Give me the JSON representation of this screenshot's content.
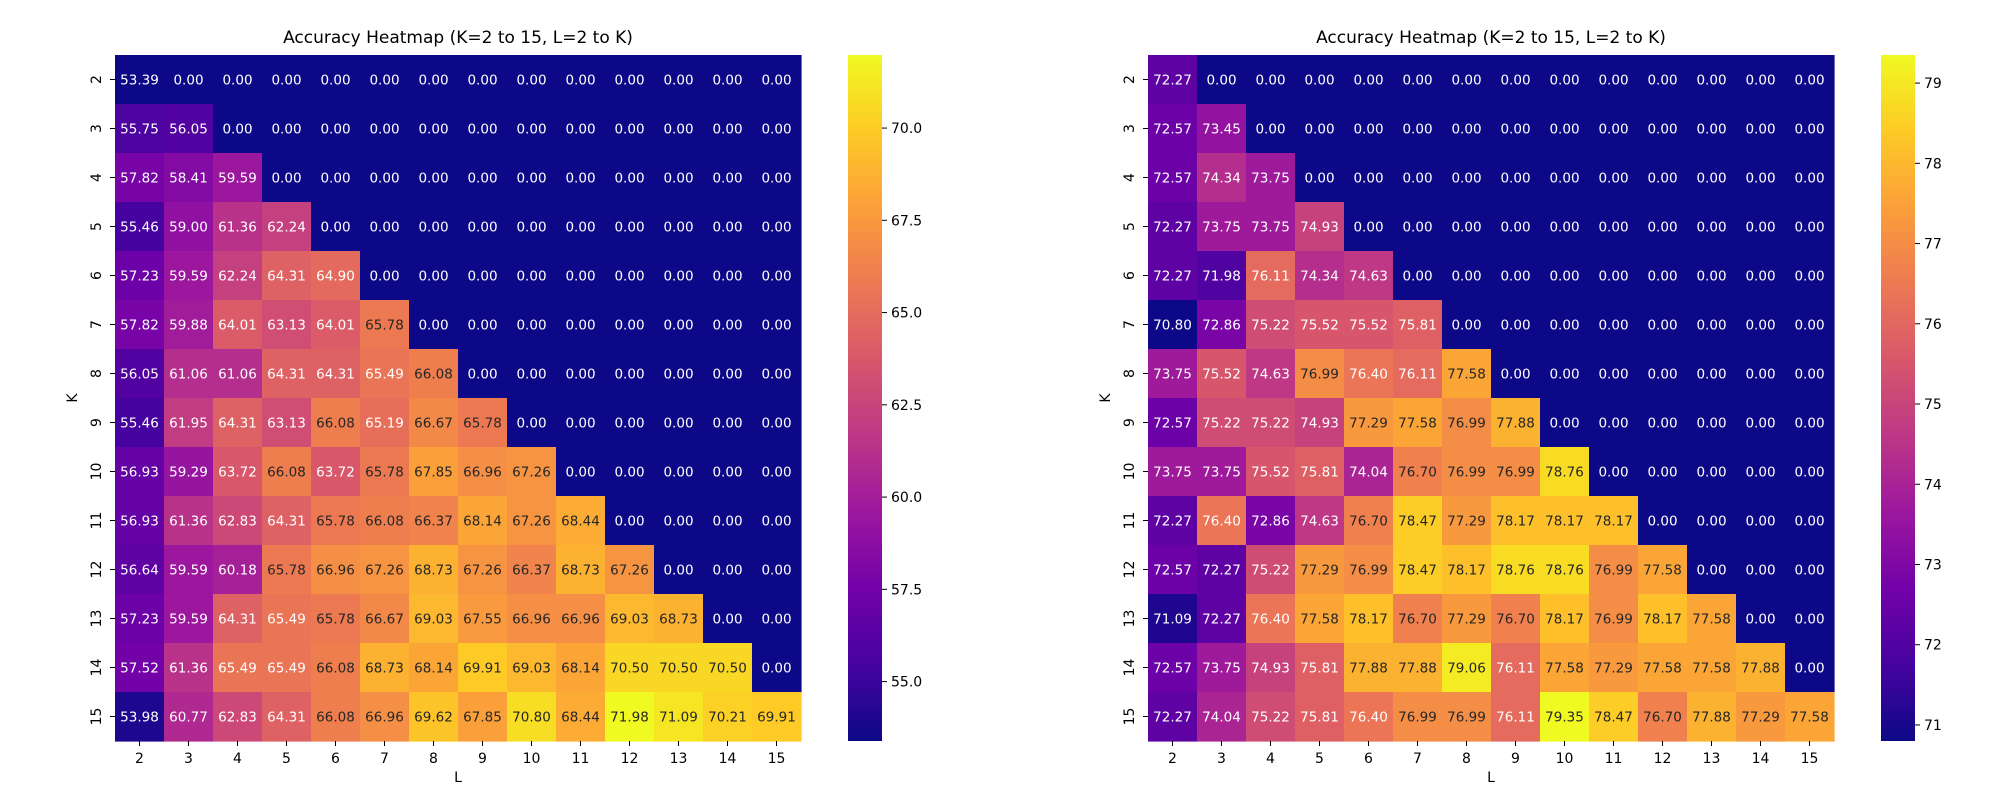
{
  "chart_data": [
    {
      "type": "heatmap",
      "title": "Accuracy Heatmap (K=2 to 15, L=2 to K)",
      "xlabel": "L",
      "ylabel": "K",
      "x_categories": [
        "2",
        "3",
        "4",
        "5",
        "6",
        "7",
        "8",
        "9",
        "10",
        "11",
        "12",
        "13",
        "14",
        "15"
      ],
      "y_categories": [
        "2",
        "3",
        "4",
        "5",
        "6",
        "7",
        "8",
        "9",
        "10",
        "11",
        "12",
        "13",
        "14",
        "15"
      ],
      "colormap": "plasma",
      "color_range": [
        53.39,
        71.98
      ],
      "colorbar_ticks": [
        "55.0",
        "57.5",
        "60.0",
        "62.5",
        "65.0",
        "67.5",
        "70.0"
      ],
      "values": [
        [
          "53.39",
          "0.00",
          "0.00",
          "0.00",
          "0.00",
          "0.00",
          "0.00",
          "0.00",
          "0.00",
          "0.00",
          "0.00",
          "0.00",
          "0.00",
          "0.00"
        ],
        [
          "55.75",
          "56.05",
          "0.00",
          "0.00",
          "0.00",
          "0.00",
          "0.00",
          "0.00",
          "0.00",
          "0.00",
          "0.00",
          "0.00",
          "0.00",
          "0.00"
        ],
        [
          "57.82",
          "58.41",
          "59.59",
          "0.00",
          "0.00",
          "0.00",
          "0.00",
          "0.00",
          "0.00",
          "0.00",
          "0.00",
          "0.00",
          "0.00",
          "0.00"
        ],
        [
          "55.46",
          "59.00",
          "61.36",
          "62.24",
          "0.00",
          "0.00",
          "0.00",
          "0.00",
          "0.00",
          "0.00",
          "0.00",
          "0.00",
          "0.00",
          "0.00"
        ],
        [
          "57.23",
          "59.59",
          "62.24",
          "64.31",
          "64.90",
          "0.00",
          "0.00",
          "0.00",
          "0.00",
          "0.00",
          "0.00",
          "0.00",
          "0.00",
          "0.00"
        ],
        [
          "57.82",
          "59.88",
          "64.01",
          "63.13",
          "64.01",
          "65.78",
          "0.00",
          "0.00",
          "0.00",
          "0.00",
          "0.00",
          "0.00",
          "0.00",
          "0.00"
        ],
        [
          "56.05",
          "61.06",
          "61.06",
          "64.31",
          "64.31",
          "65.49",
          "66.08",
          "0.00",
          "0.00",
          "0.00",
          "0.00",
          "0.00",
          "0.00",
          "0.00"
        ],
        [
          "55.46",
          "61.95",
          "64.31",
          "63.13",
          "66.08",
          "65.19",
          "66.67",
          "65.78",
          "0.00",
          "0.00",
          "0.00",
          "0.00",
          "0.00",
          "0.00"
        ],
        [
          "56.93",
          "59.29",
          "63.72",
          "66.08",
          "63.72",
          "65.78",
          "67.85",
          "66.96",
          "67.26",
          "0.00",
          "0.00",
          "0.00",
          "0.00",
          "0.00"
        ],
        [
          "56.93",
          "61.36",
          "62.83",
          "64.31",
          "65.78",
          "66.08",
          "66.37",
          "68.14",
          "67.26",
          "68.44",
          "0.00",
          "0.00",
          "0.00",
          "0.00"
        ],
        [
          "56.64",
          "59.59",
          "60.18",
          "65.78",
          "66.96",
          "67.26",
          "68.73",
          "67.26",
          "66.37",
          "68.73",
          "67.26",
          "0.00",
          "0.00",
          "0.00"
        ],
        [
          "57.23",
          "59.59",
          "64.31",
          "65.49",
          "65.78",
          "66.67",
          "69.03",
          "67.55",
          "66.96",
          "66.96",
          "69.03",
          "68.73",
          "0.00",
          "0.00"
        ],
        [
          "57.52",
          "61.36",
          "65.49",
          "65.49",
          "66.08",
          "68.73",
          "68.14",
          "69.91",
          "69.03",
          "68.14",
          "70.50",
          "70.50",
          "70.50",
          "0.00"
        ],
        [
          "53.98",
          "60.77",
          "62.83",
          "64.31",
          "66.08",
          "66.96",
          "69.62",
          "67.85",
          "70.80",
          "68.44",
          "71.98",
          "71.09",
          "70.21",
          "69.91"
        ]
      ]
    },
    {
      "type": "heatmap",
      "title": "Accuracy Heatmap (K=2 to 15, L=2 to K)",
      "xlabel": "L",
      "ylabel": "K",
      "x_categories": [
        "2",
        "3",
        "4",
        "5",
        "6",
        "7",
        "8",
        "9",
        "10",
        "11",
        "12",
        "13",
        "14",
        "15"
      ],
      "y_categories": [
        "2",
        "3",
        "4",
        "5",
        "6",
        "7",
        "8",
        "9",
        "10",
        "11",
        "12",
        "13",
        "14",
        "15"
      ],
      "colormap": "plasma",
      "color_range": [
        70.8,
        79.35
      ],
      "colorbar_ticks": [
        "71",
        "72",
        "73",
        "74",
        "75",
        "76",
        "77",
        "78",
        "79"
      ],
      "values": [
        [
          "72.27",
          "0.00",
          "0.00",
          "0.00",
          "0.00",
          "0.00",
          "0.00",
          "0.00",
          "0.00",
          "0.00",
          "0.00",
          "0.00",
          "0.00",
          "0.00"
        ],
        [
          "72.57",
          "73.45",
          "0.00",
          "0.00",
          "0.00",
          "0.00",
          "0.00",
          "0.00",
          "0.00",
          "0.00",
          "0.00",
          "0.00",
          "0.00",
          "0.00"
        ],
        [
          "72.57",
          "74.34",
          "73.75",
          "0.00",
          "0.00",
          "0.00",
          "0.00",
          "0.00",
          "0.00",
          "0.00",
          "0.00",
          "0.00",
          "0.00",
          "0.00"
        ],
        [
          "72.27",
          "73.75",
          "73.75",
          "74.93",
          "0.00",
          "0.00",
          "0.00",
          "0.00",
          "0.00",
          "0.00",
          "0.00",
          "0.00",
          "0.00",
          "0.00"
        ],
        [
          "72.27",
          "71.98",
          "76.11",
          "74.34",
          "74.63",
          "0.00",
          "0.00",
          "0.00",
          "0.00",
          "0.00",
          "0.00",
          "0.00",
          "0.00",
          "0.00"
        ],
        [
          "70.80",
          "72.86",
          "75.22",
          "75.52",
          "75.52",
          "75.81",
          "0.00",
          "0.00",
          "0.00",
          "0.00",
          "0.00",
          "0.00",
          "0.00",
          "0.00"
        ],
        [
          "73.75",
          "75.52",
          "74.63",
          "76.99",
          "76.40",
          "76.11",
          "77.58",
          "0.00",
          "0.00",
          "0.00",
          "0.00",
          "0.00",
          "0.00",
          "0.00"
        ],
        [
          "72.57",
          "75.22",
          "75.22",
          "74.93",
          "77.29",
          "77.58",
          "76.99",
          "77.88",
          "0.00",
          "0.00",
          "0.00",
          "0.00",
          "0.00",
          "0.00"
        ],
        [
          "73.75",
          "73.75",
          "75.52",
          "75.81",
          "74.04",
          "76.70",
          "76.99",
          "76.99",
          "78.76",
          "0.00",
          "0.00",
          "0.00",
          "0.00",
          "0.00"
        ],
        [
          "72.27",
          "76.40",
          "72.86",
          "74.63",
          "76.70",
          "78.47",
          "77.29",
          "78.17",
          "78.17",
          "78.17",
          "0.00",
          "0.00",
          "0.00",
          "0.00"
        ],
        [
          "72.57",
          "72.27",
          "75.22",
          "77.29",
          "76.99",
          "78.47",
          "78.17",
          "78.76",
          "78.76",
          "76.99",
          "77.58",
          "0.00",
          "0.00",
          "0.00"
        ],
        [
          "71.09",
          "72.27",
          "76.40",
          "77.58",
          "78.17",
          "76.70",
          "77.29",
          "76.70",
          "78.17",
          "76.99",
          "78.17",
          "77.58",
          "0.00",
          "0.00"
        ],
        [
          "72.57",
          "73.75",
          "74.93",
          "75.81",
          "77.88",
          "77.88",
          "79.06",
          "76.11",
          "77.58",
          "77.29",
          "77.58",
          "77.58",
          "77.88",
          "0.00"
        ],
        [
          "72.27",
          "74.04",
          "75.22",
          "75.81",
          "76.40",
          "76.99",
          "76.99",
          "76.11",
          "79.35",
          "78.47",
          "76.70",
          "77.88",
          "77.29",
          "77.58"
        ]
      ]
    }
  ]
}
